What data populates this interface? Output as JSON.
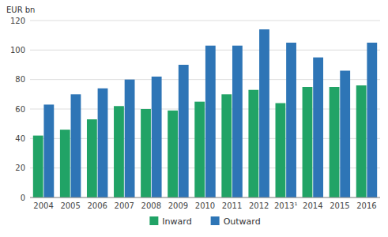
{
  "chart_data": {
    "type": "bar",
    "ylabel": "EUR bn",
    "categories": [
      "2004",
      "2005",
      "2006",
      "2007",
      "2008",
      "2009",
      "2010",
      "2011",
      "2012",
      "2013¹",
      "2014",
      "2015",
      "2016"
    ],
    "series": [
      {
        "name": "Inward",
        "color": "#21a366",
        "values": [
          42,
          46,
          53,
          62,
          60,
          59,
          65,
          70,
          73,
          64,
          75,
          75,
          76
        ]
      },
      {
        "name": "Outward",
        "color": "#2e75b6",
        "values": [
          63,
          70,
          74,
          80,
          82,
          90,
          103,
          103,
          114,
          105,
          95,
          86,
          105
        ]
      }
    ],
    "ylim": [
      0,
      120
    ],
    "yticks": [
      0,
      20,
      40,
      60,
      80,
      100,
      120
    ],
    "grid": true,
    "legend": "bottom"
  }
}
